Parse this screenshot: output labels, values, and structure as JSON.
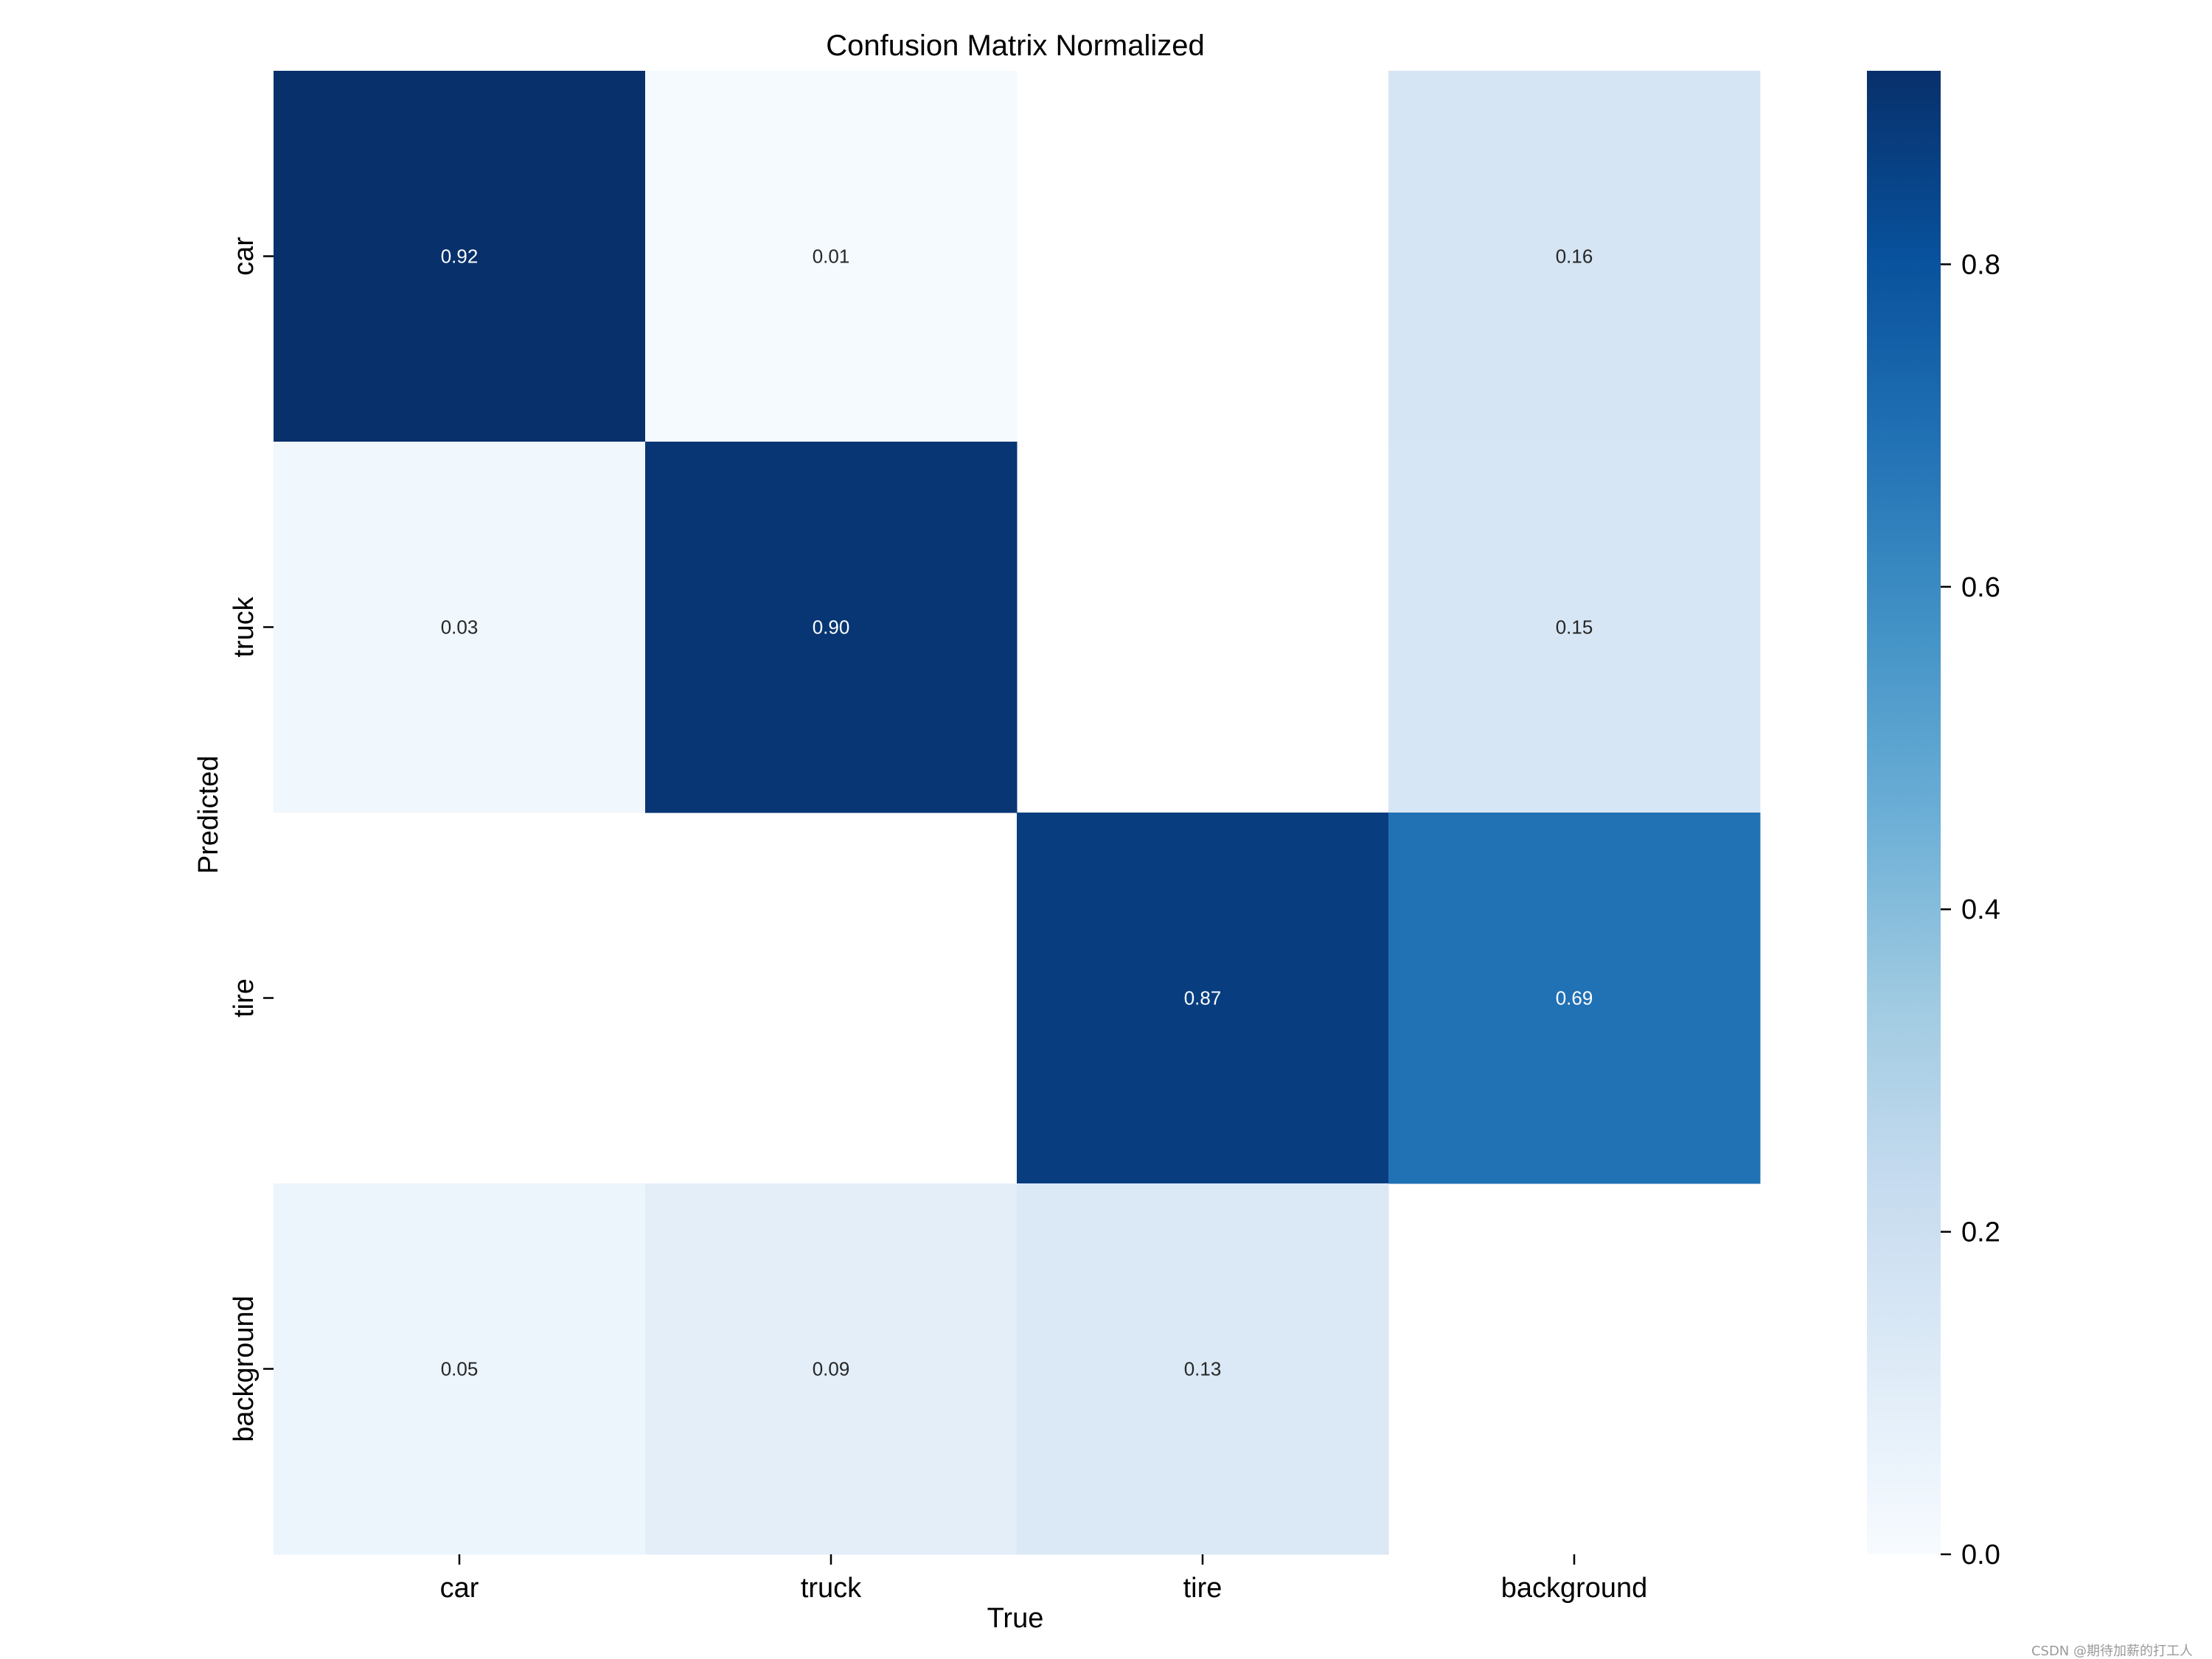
{
  "chart_data": {
    "type": "heatmap",
    "title": "Confusion Matrix Normalized",
    "xlabel": "True",
    "ylabel": "Predicted",
    "x_categories": [
      "car",
      "truck",
      "tire",
      "background"
    ],
    "y_categories": [
      "car",
      "truck",
      "tire",
      "background"
    ],
    "values": [
      [
        0.92,
        0.01,
        null,
        0.16
      ],
      [
        0.03,
        0.9,
        null,
        0.15
      ],
      [
        null,
        null,
        0.87,
        0.69
      ],
      [
        0.05,
        0.09,
        0.13,
        null
      ]
    ],
    "colorbar": {
      "colormap": "Blues",
      "vmin": 0.0,
      "vmax": 0.92,
      "ticks": [
        0.0,
        0.2,
        0.4,
        0.6,
        0.8
      ],
      "tick_labels": [
        "0.0",
        "0.2",
        "0.4",
        "0.6",
        "0.8"
      ]
    },
    "grid": false
  },
  "watermark": "CSDN @期待加薪的打工人"
}
